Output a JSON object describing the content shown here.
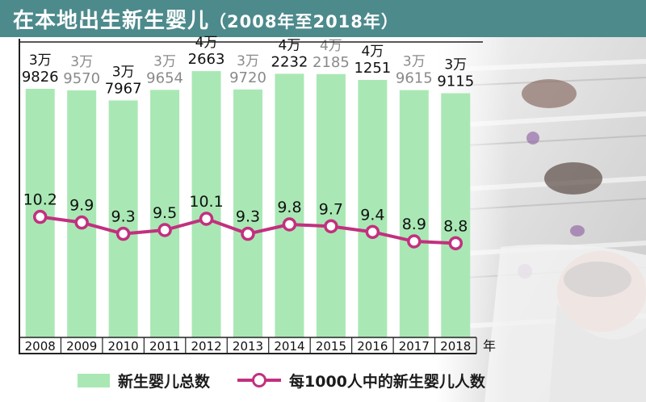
{
  "title": {
    "main": "在本地出生新生婴儿",
    "sub": "（2008年至2018年）"
  },
  "colors": {
    "title_bg": "#4d8a8c",
    "bar": "#a9e8b4",
    "line": "#c2307f",
    "frame": "#222222",
    "text": "#111111",
    "muted_text": "#8a8a8a"
  },
  "legend": {
    "bars_label": "新生婴儿总数",
    "line_label": "每1000人中的新生婴儿人数"
  },
  "x_axis_unit": "年",
  "chart_data": {
    "type": "bar",
    "title": "在本地出生新生婴儿（2008年至2018年）",
    "categories": [
      "2008",
      "2009",
      "2010",
      "2011",
      "2012",
      "2013",
      "2014",
      "2015",
      "2016",
      "2017",
      "2018"
    ],
    "series": [
      {
        "name": "新生婴儿总数",
        "type": "bar",
        "values": [
          39826,
          39570,
          37967,
          39654,
          42663,
          39720,
          42232,
          42185,
          41251,
          39615,
          39115
        ],
        "labels_top": [
          "3万",
          "3万",
          "3万",
          "3万",
          "4万",
          "3万",
          "4万",
          "4万",
          "4万",
          "3万",
          "3万"
        ],
        "labels_bottom": [
          "9826",
          "9570",
          "7967",
          "9654",
          "2663",
          "9720",
          "2232",
          "2185",
          "1251",
          "9615",
          "9115"
        ],
        "label_muted": [
          false,
          true,
          false,
          true,
          false,
          true,
          false,
          true,
          false,
          true,
          false
        ]
      },
      {
        "name": "每1000人中的新生婴儿人数",
        "type": "line",
        "values": [
          10.2,
          9.9,
          9.3,
          9.5,
          10.1,
          9.3,
          9.8,
          9.7,
          9.4,
          8.9,
          8.8
        ],
        "labels": [
          "10.2",
          "9.9",
          "9.3",
          "9.5",
          "10.1",
          "9.3",
          "9.8",
          "9.7",
          "9.4",
          "8.9",
          "8.8"
        ]
      }
    ],
    "legend_position": "bottom",
    "grid": false
  }
}
